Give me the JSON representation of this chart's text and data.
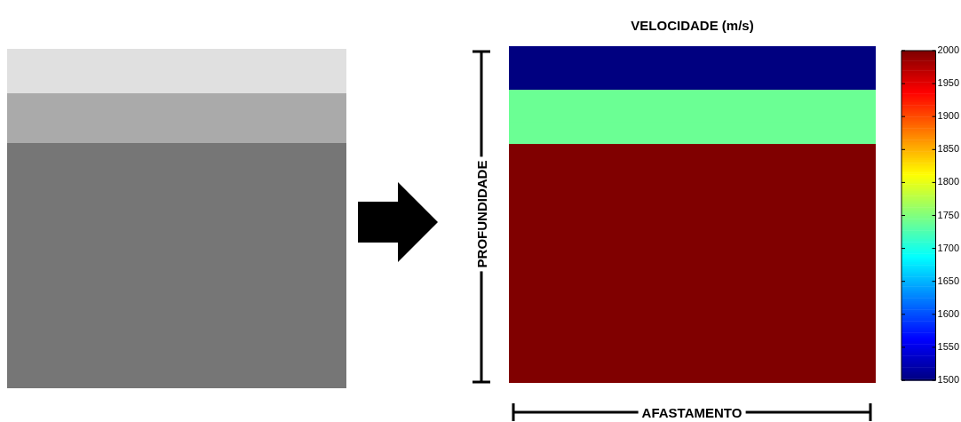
{
  "chart_data": {
    "type": "heatmap",
    "title": "VELOCIDADE (m/s)",
    "xlabel": "AFASTAMENTO",
    "ylabel": "PROFUNDIDADE",
    "categories": [
      null
    ],
    "y_categories": [
      null,
      null,
      null,
      null,
      null,
      null,
      null,
      null,
      null,
      null,
      null,
      null,
      null,
      null,
      null,
      null,
      null,
      null,
      null,
      null,
      null,
      null,
      null,
      null,
      null,
      null,
      null,
      null,
      null,
      null,
      null
    ],
    "cells": [
      [
        1500
      ],
      [
        1500
      ],
      [
        1500
      ],
      [
        1500
      ],
      [
        1740
      ],
      [
        1740
      ],
      [
        1740
      ],
      [
        1740
      ],
      [
        1740
      ],
      [
        2000
      ],
      [
        2000
      ],
      [
        2000
      ],
      [
        2000
      ],
      [
        2000
      ],
      [
        2000
      ],
      [
        2000
      ],
      [
        2000
      ],
      [
        2000
      ],
      [
        2000
      ],
      [
        2000
      ],
      [
        2000
      ],
      [
        2000
      ],
      [
        2000
      ],
      [
        2000
      ],
      [
        2000
      ],
      [
        2000
      ],
      [
        2000
      ],
      [
        2000
      ],
      [
        2000
      ],
      [
        2000
      ],
      [
        2000
      ]
    ],
    "clim": [
      1500,
      2000
    ],
    "cticks": [
      1500,
      1550,
      1600,
      1650,
      1700,
      1750,
      1800,
      1850,
      1900,
      1950,
      2000
    ]
  }
}
